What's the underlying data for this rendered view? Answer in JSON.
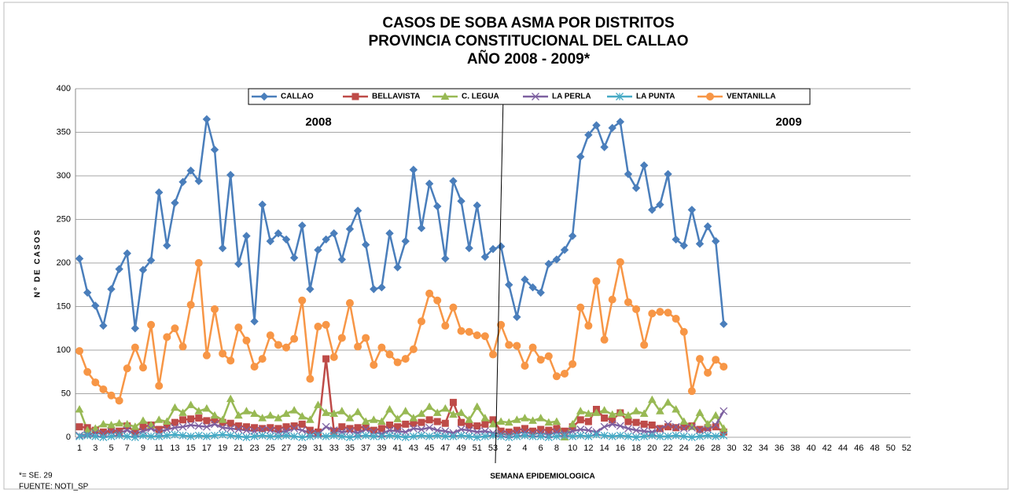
{
  "chart_data": {
    "type": "line",
    "title": [
      "CASOS DE SOBA ASMA POR DISTRITOS",
      "PROVINCIA CONSTITUCIONAL DEL CALLAO",
      "AÑO 2008 - 2009*"
    ],
    "y_label": "Nº DE CASOS",
    "x_label": "SEMANA EPIDEMIOLOGICA",
    "annotations": [
      "2008",
      "2009"
    ],
    "footnotes": [
      "*= SE. 29",
      "FUENTE: NOTI_SP"
    ],
    "categories": [
      1,
      null,
      3,
      null,
      5,
      null,
      7,
      null,
      9,
      null,
      11,
      null,
      13,
      null,
      15,
      null,
      17,
      null,
      19,
      null,
      21,
      null,
      23,
      null,
      25,
      null,
      27,
      null,
      29,
      null,
      31,
      null,
      33,
      null,
      35,
      null,
      37,
      null,
      39,
      null,
      41,
      null,
      43,
      null,
      45,
      null,
      47,
      null,
      49,
      null,
      51,
      null,
      53,
      null,
      2,
      null,
      4,
      null,
      6,
      null,
      8,
      null,
      10,
      null,
      12,
      null,
      14,
      null,
      16,
      null,
      18,
      null,
      20,
      null,
      22,
      null,
      24,
      null,
      26,
      null,
      28,
      null,
      30,
      null,
      32,
      null,
      34,
      null,
      36,
      null,
      38,
      null,
      40,
      null,
      42,
      null,
      44,
      null,
      46,
      null,
      48,
      null,
      50,
      null,
      52
    ],
    "ylim": [
      0,
      400
    ],
    "yticks": [
      0,
      50,
      100,
      150,
      200,
      250,
      300,
      350,
      400
    ],
    "grid": true,
    "legend": "top",
    "series": [
      {
        "name": "CALLAO",
        "color": "#4a7ebb",
        "marker": "diamond",
        "values": [
          205,
          166,
          151,
          128,
          170,
          193,
          211,
          125,
          192,
          203,
          281,
          220,
          269,
          293,
          306,
          294,
          365,
          330,
          217,
          301,
          199,
          231,
          133,
          267,
          225,
          234,
          227,
          206,
          243,
          170,
          215,
          227,
          234,
          204,
          239,
          260,
          221,
          170,
          172,
          234,
          195,
          225,
          307,
          240,
          291,
          265,
          205,
          294,
          271,
          217,
          266,
          207,
          216,
          219,
          175,
          138,
          181,
          172,
          166,
          199,
          204,
          215,
          231,
          322,
          347,
          358,
          333,
          355,
          362,
          302,
          286,
          312,
          261,
          267,
          302,
          227,
          220,
          261,
          222,
          242,
          225,
          130,
          null,
          null,
          null,
          null,
          null,
          null,
          null,
          null,
          null,
          null,
          null,
          null,
          null,
          null,
          null,
          null,
          null,
          null,
          null,
          null,
          null,
          null,
          null
        ]
      },
      {
        "name": "BELLAVISTA",
        "color": "#be4b48",
        "marker": "square",
        "values": [
          12,
          11,
          8,
          6,
          8,
          7,
          13,
          6,
          12,
          14,
          9,
          14,
          17,
          20,
          21,
          22,
          19,
          20,
          17,
          16,
          13,
          12,
          11,
          10,
          11,
          10,
          12,
          13,
          15,
          8,
          6,
          90,
          7,
          12,
          10,
          11,
          12,
          8,
          10,
          14,
          12,
          15,
          16,
          17,
          20,
          18,
          16,
          40,
          17,
          14,
          13,
          15,
          20,
          7,
          6,
          8,
          10,
          7,
          9,
          8,
          10,
          7,
          12,
          20,
          18,
          32,
          22,
          20,
          28,
          18,
          17,
          15,
          14,
          10,
          12,
          11,
          12,
          13,
          9,
          11,
          12,
          6,
          null,
          null,
          null,
          null,
          null,
          null,
          null,
          null,
          null,
          null,
          null,
          null,
          null,
          null,
          null,
          null,
          null,
          null,
          null,
          null,
          null,
          null,
          null
        ]
      },
      {
        "name": "C. LEGUA",
        "color": "#98b954",
        "marker": "triangle",
        "values": [
          32,
          8,
          10,
          15,
          14,
          16,
          15,
          12,
          19,
          14,
          20,
          18,
          34,
          28,
          37,
          30,
          33,
          25,
          20,
          44,
          25,
          30,
          27,
          22,
          25,
          22,
          27,
          31,
          24,
          20,
          37,
          28,
          27,
          30,
          22,
          29,
          18,
          20,
          18,
          32,
          21,
          30,
          22,
          27,
          35,
          28,
          33,
          26,
          28,
          20,
          35,
          22,
          15,
          18,
          17,
          20,
          22,
          19,
          22,
          17,
          18,
          0,
          15,
          30,
          27,
          28,
          31,
          26,
          28,
          25,
          30,
          27,
          43,
          30,
          40,
          32,
          18,
          12,
          28,
          15,
          25,
          10,
          null,
          null,
          null,
          null,
          null,
          null,
          null,
          null,
          null,
          null,
          null,
          null,
          null,
          null,
          null,
          null,
          null,
          null,
          null,
          null,
          null,
          null,
          null
        ]
      },
      {
        "name": "LA PERLA",
        "color": "#7d60a0",
        "marker": "x",
        "values": [
          2,
          3,
          5,
          4,
          6,
          5,
          8,
          4,
          7,
          10,
          6,
          9,
          11,
          12,
          14,
          13,
          12,
          15,
          11,
          10,
          9,
          8,
          7,
          9,
          8,
          6,
          7,
          10,
          8,
          5,
          4,
          12,
          8,
          6,
          7,
          5,
          9,
          6,
          4,
          8,
          7,
          6,
          10,
          9,
          11,
          8,
          7,
          5,
          9,
          8,
          6,
          7,
          5,
          4,
          3,
          5,
          6,
          4,
          5,
          3,
          6,
          4,
          7,
          9,
          8,
          6,
          12,
          15,
          13,
          10,
          8,
          7,
          6,
          9,
          15,
          12,
          10,
          11,
          8,
          9,
          14,
          30,
          null,
          null,
          null,
          null,
          null,
          null,
          null,
          null,
          null,
          null,
          null,
          null,
          null,
          null,
          null,
          null,
          null,
          null,
          null,
          null,
          null,
          null,
          null
        ]
      },
      {
        "name": "LA PUNTA",
        "color": "#46aac5",
        "marker": "star",
        "values": [
          1,
          2,
          1,
          0,
          1,
          2,
          1,
          0,
          2,
          1,
          1,
          2,
          3,
          2,
          1,
          2,
          1,
          2,
          3,
          2,
          1,
          0,
          1,
          2,
          1,
          1,
          2,
          1,
          0,
          1,
          2,
          1,
          2,
          1,
          0,
          1,
          2,
          1,
          1,
          2,
          1,
          0,
          1,
          2,
          1,
          2,
          1,
          1,
          2,
          1,
          0,
          1,
          2,
          1,
          0,
          1,
          2,
          1,
          1,
          0,
          1,
          2,
          1,
          2,
          1,
          3,
          2,
          1,
          2,
          1,
          0,
          1,
          2,
          1,
          1,
          2,
          1,
          0,
          1,
          2,
          1,
          2,
          null,
          null,
          null,
          null,
          null,
          null,
          null,
          null,
          null,
          null,
          null,
          null,
          null,
          null,
          null,
          null,
          null,
          null,
          null,
          null,
          null,
          null,
          null
        ]
      },
      {
        "name": "VENTANILLA",
        "color": "#f79646",
        "marker": "circle",
        "values": [
          99,
          75,
          63,
          55,
          48,
          42,
          79,
          103,
          80,
          129,
          59,
          115,
          125,
          104,
          152,
          200,
          94,
          147,
          96,
          88,
          126,
          111,
          81,
          90,
          117,
          106,
          103,
          113,
          157,
          67,
          127,
          129,
          92,
          114,
          154,
          104,
          114,
          83,
          103,
          95,
          86,
          90,
          101,
          133,
          165,
          157,
          128,
          149,
          122,
          121,
          117,
          116,
          95,
          129,
          106,
          105,
          82,
          103,
          89,
          93,
          70,
          73,
          84,
          149,
          128,
          179,
          112,
          158,
          201,
          155,
          147,
          106,
          142,
          144,
          143,
          136,
          121,
          53,
          90,
          74,
          89,
          81,
          null,
          null,
          null,
          null,
          null,
          null,
          null,
          null,
          null,
          null,
          null,
          null,
          null,
          null,
          null,
          null,
          null,
          null,
          null,
          null,
          null,
          null,
          null
        ]
      }
    ]
  }
}
